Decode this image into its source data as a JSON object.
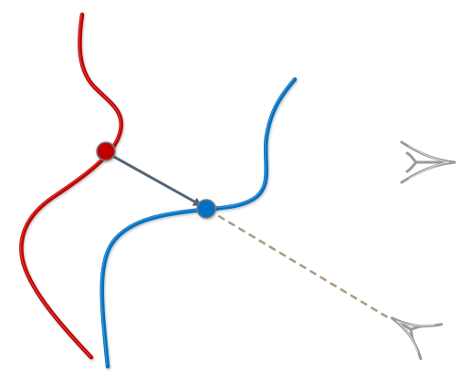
{
  "diagram": {
    "description_name": "two-curves-with-connecting-vector-and-view-eyes",
    "colors": {
      "background": "#ffffff",
      "red_curve": "#c00000",
      "red_curve_highlight": "#e87070",
      "red_point": "#c00000",
      "blue_curve": "#0070c0",
      "blue_curve_highlight": "#6fb4e8",
      "blue_point": "#0070c0",
      "arrow": "#546575",
      "dashed_line": "#a89a80",
      "eye_stroke": "#9a9a9a",
      "eye_highlight": "#e6e6e6",
      "point_outline": "#7a7a7a"
    },
    "elements": {
      "red_curve": "red-curve",
      "blue_curve": "blue-curve",
      "red_point": "red-point",
      "blue_point": "blue-point",
      "arrow": "connecting-arrow",
      "dashed_line": "dashed-sight-line",
      "eye_upper": "eye-icon",
      "eye_lower": "eye-icon"
    }
  }
}
